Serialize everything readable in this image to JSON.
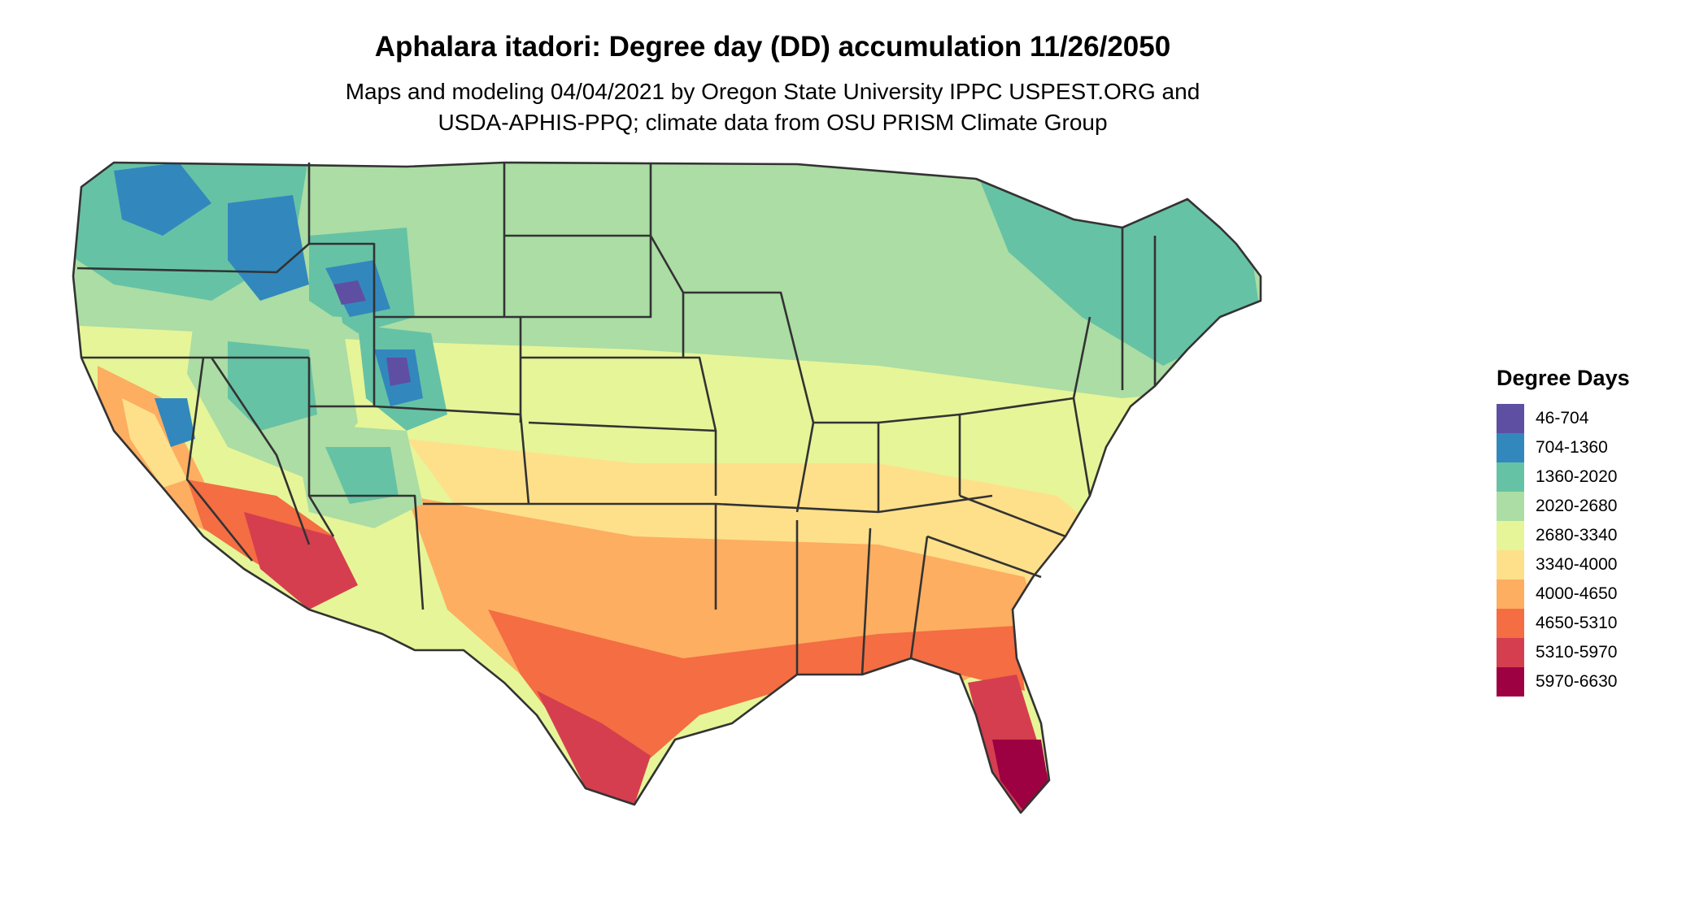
{
  "title": "Aphalara itadori: Degree day (DD) accumulation 11/26/2050",
  "subtitle_line1": "Maps and modeling 04/04/2021 by Oregon State University IPPC USPEST.ORG and",
  "subtitle_line2": "USDA-APHIS-PPQ; climate data from OSU PRISM Climate Group",
  "legend": {
    "title": "Degree Days",
    "items": [
      {
        "label": "46-704",
        "color": "#5e4fa2"
      },
      {
        "label": "704-1360",
        "color": "#3288bd"
      },
      {
        "label": "1360-2020",
        "color": "#66c2a5"
      },
      {
        "label": "2020-2680",
        "color": "#abdda4"
      },
      {
        "label": "2680-3340",
        "color": "#e6f598"
      },
      {
        "label": "3340-4000",
        "color": "#fee08b"
      },
      {
        "label": "4000-4650",
        "color": "#fdae61"
      },
      {
        "label": "4650-5310",
        "color": "#f46d43"
      },
      {
        "label": "5310-5970",
        "color": "#d53e4f"
      },
      {
        "label": "5970-6630",
        "color": "#9e0142"
      }
    ]
  },
  "map": {
    "region": "contiguous United States",
    "state_border_color": "#333333"
  }
}
